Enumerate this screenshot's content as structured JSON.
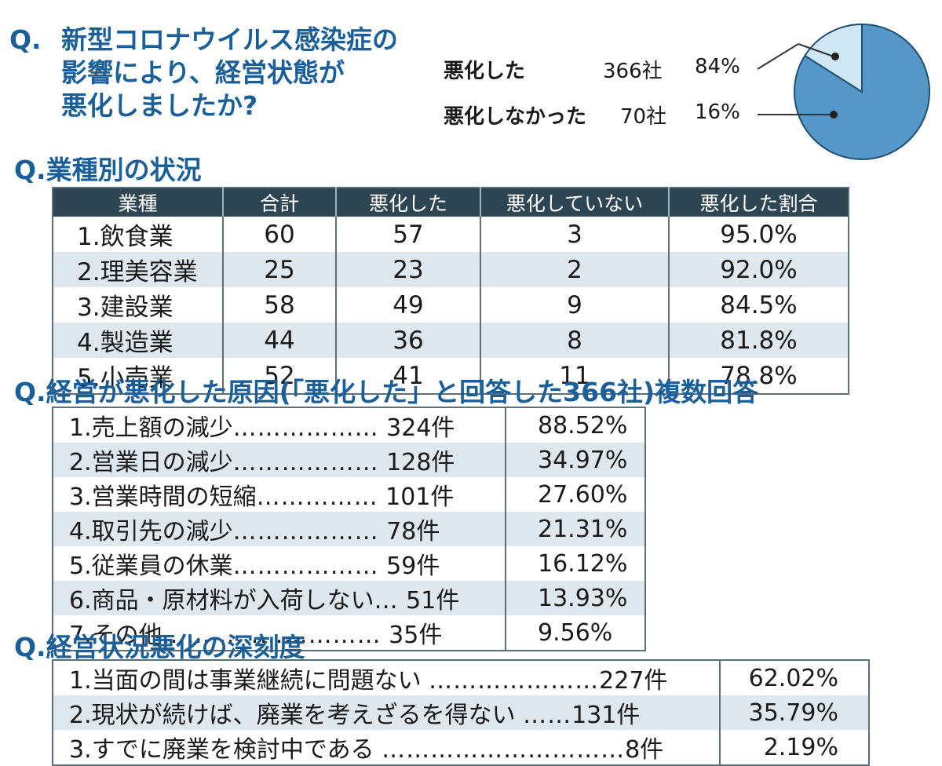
{
  "q1": {
    "qmark": "Q.",
    "lines": [
      "新型コロナウイルス感染症の",
      "影響により、経営状態が",
      "悪化しましたか?"
    ]
  },
  "pie_legend": [
    {
      "label": "悪化した",
      "count": "366社",
      "pct": "84%"
    },
    {
      "label": "悪化しなかった",
      "count": "70社",
      "pct": "16%"
    }
  ],
  "q2": {
    "title": "Q.業種別の状況"
  },
  "industry_table": {
    "headers": [
      "業種",
      "合計",
      "悪化した",
      "悪化していない",
      "悪化した割合"
    ],
    "rows": [
      [
        "1.飲食業",
        "60",
        "57",
        "3",
        "95.0%"
      ],
      [
        "2.理美容業",
        "25",
        "23",
        "2",
        "92.0%"
      ],
      [
        "3.建設業",
        "58",
        "49",
        "9",
        "84.5%"
      ],
      [
        "4.製造業",
        "44",
        "36",
        "8",
        "81.8%"
      ],
      [
        "5.小売業",
        "52",
        "41",
        "11",
        "78.8%"
      ]
    ]
  },
  "q3": {
    "title": "Q.経営が悪化した原因(「悪化した」と回答した366社)複数回答"
  },
  "cause_table": {
    "rows": [
      {
        "item": "1.売上額の減少",
        "dots": "………………",
        "count": "324件",
        "pct": "88.52%"
      },
      {
        "item": "2.営業日の減少",
        "dots": "………………",
        "count": "128件",
        "pct": "34.97%"
      },
      {
        "item": "3.営業時間の短縮",
        "dots": "……………",
        "count": "101件",
        "pct": "27.60%"
      },
      {
        "item": "4.取引先の減少",
        "dots": "………………",
        "count": "78件",
        "pct": "21.31%"
      },
      {
        "item": "5.従業員の休業",
        "dots": "………………",
        "count": "59件",
        "pct": "16.12%"
      },
      {
        "item": "6.商品・原材料が入荷しない",
        "dots": "…",
        "count": "51件",
        "pct": "13.93%"
      },
      {
        "item": "7.その他",
        "dots": "………………………",
        "count": "35件",
        "pct": "9.56%"
      }
    ]
  },
  "q4": {
    "title": "Q.経営状況悪化の深刻度"
  },
  "severity_table": {
    "rows": [
      {
        "item": "1.当面の間は事業継続に問題ない",
        "dots": "…………………",
        "count": "227件",
        "pct": "62.02%"
      },
      {
        "item": "2.現状が続けば、廃業を考えざるを得ない",
        "dots": "……",
        "count": "131件",
        "pct": "35.79%"
      },
      {
        "item": "3.すでに廃業を検討中である",
        "dots": "…………………………",
        "count": "8件",
        "pct": "2.19%"
      }
    ]
  },
  "chart_data": [
    {
      "type": "pie",
      "labels": [
        "悪化した",
        "悪化しなかった"
      ],
      "values": [
        84,
        16
      ],
      "counts": [
        366,
        70
      ],
      "colors": [
        "#5597c6",
        "#cfe6f5"
      ]
    },
    {
      "type": "table",
      "columns": [
        "業種",
        "合計",
        "悪化した",
        "悪化していない",
        "悪化した割合"
      ],
      "rows": [
        [
          "1.飲食業",
          60,
          57,
          3,
          95.0
        ],
        [
          "2.理美容業",
          25,
          23,
          2,
          92.0
        ],
        [
          "3.建設業",
          58,
          49,
          9,
          84.5
        ],
        [
          "4.製造業",
          44,
          36,
          8,
          81.8
        ],
        [
          "5.小売業",
          52,
          41,
          11,
          78.8
        ]
      ]
    },
    {
      "type": "table",
      "categories": [
        "1.売上額の減少",
        "2.営業日の減少",
        "3.営業時間の短縮",
        "4.取引先の減少",
        "5.従業員の休業",
        "6.商品・原材料が入荷しない",
        "7.その他"
      ],
      "counts": [
        324,
        128,
        101,
        78,
        59,
        51,
        35
      ],
      "percent": [
        88.52,
        34.97,
        27.6,
        21.31,
        16.12,
        13.93,
        9.56
      ]
    },
    {
      "type": "table",
      "categories": [
        "1.当面の間は事業継続に問題ない",
        "2.現状が続けば、廃業を考えざるを得ない",
        "3.すでに廃業を検討中である"
      ],
      "counts": [
        227,
        131,
        8
      ],
      "percent": [
        62.02,
        35.79,
        2.19
      ]
    }
  ]
}
